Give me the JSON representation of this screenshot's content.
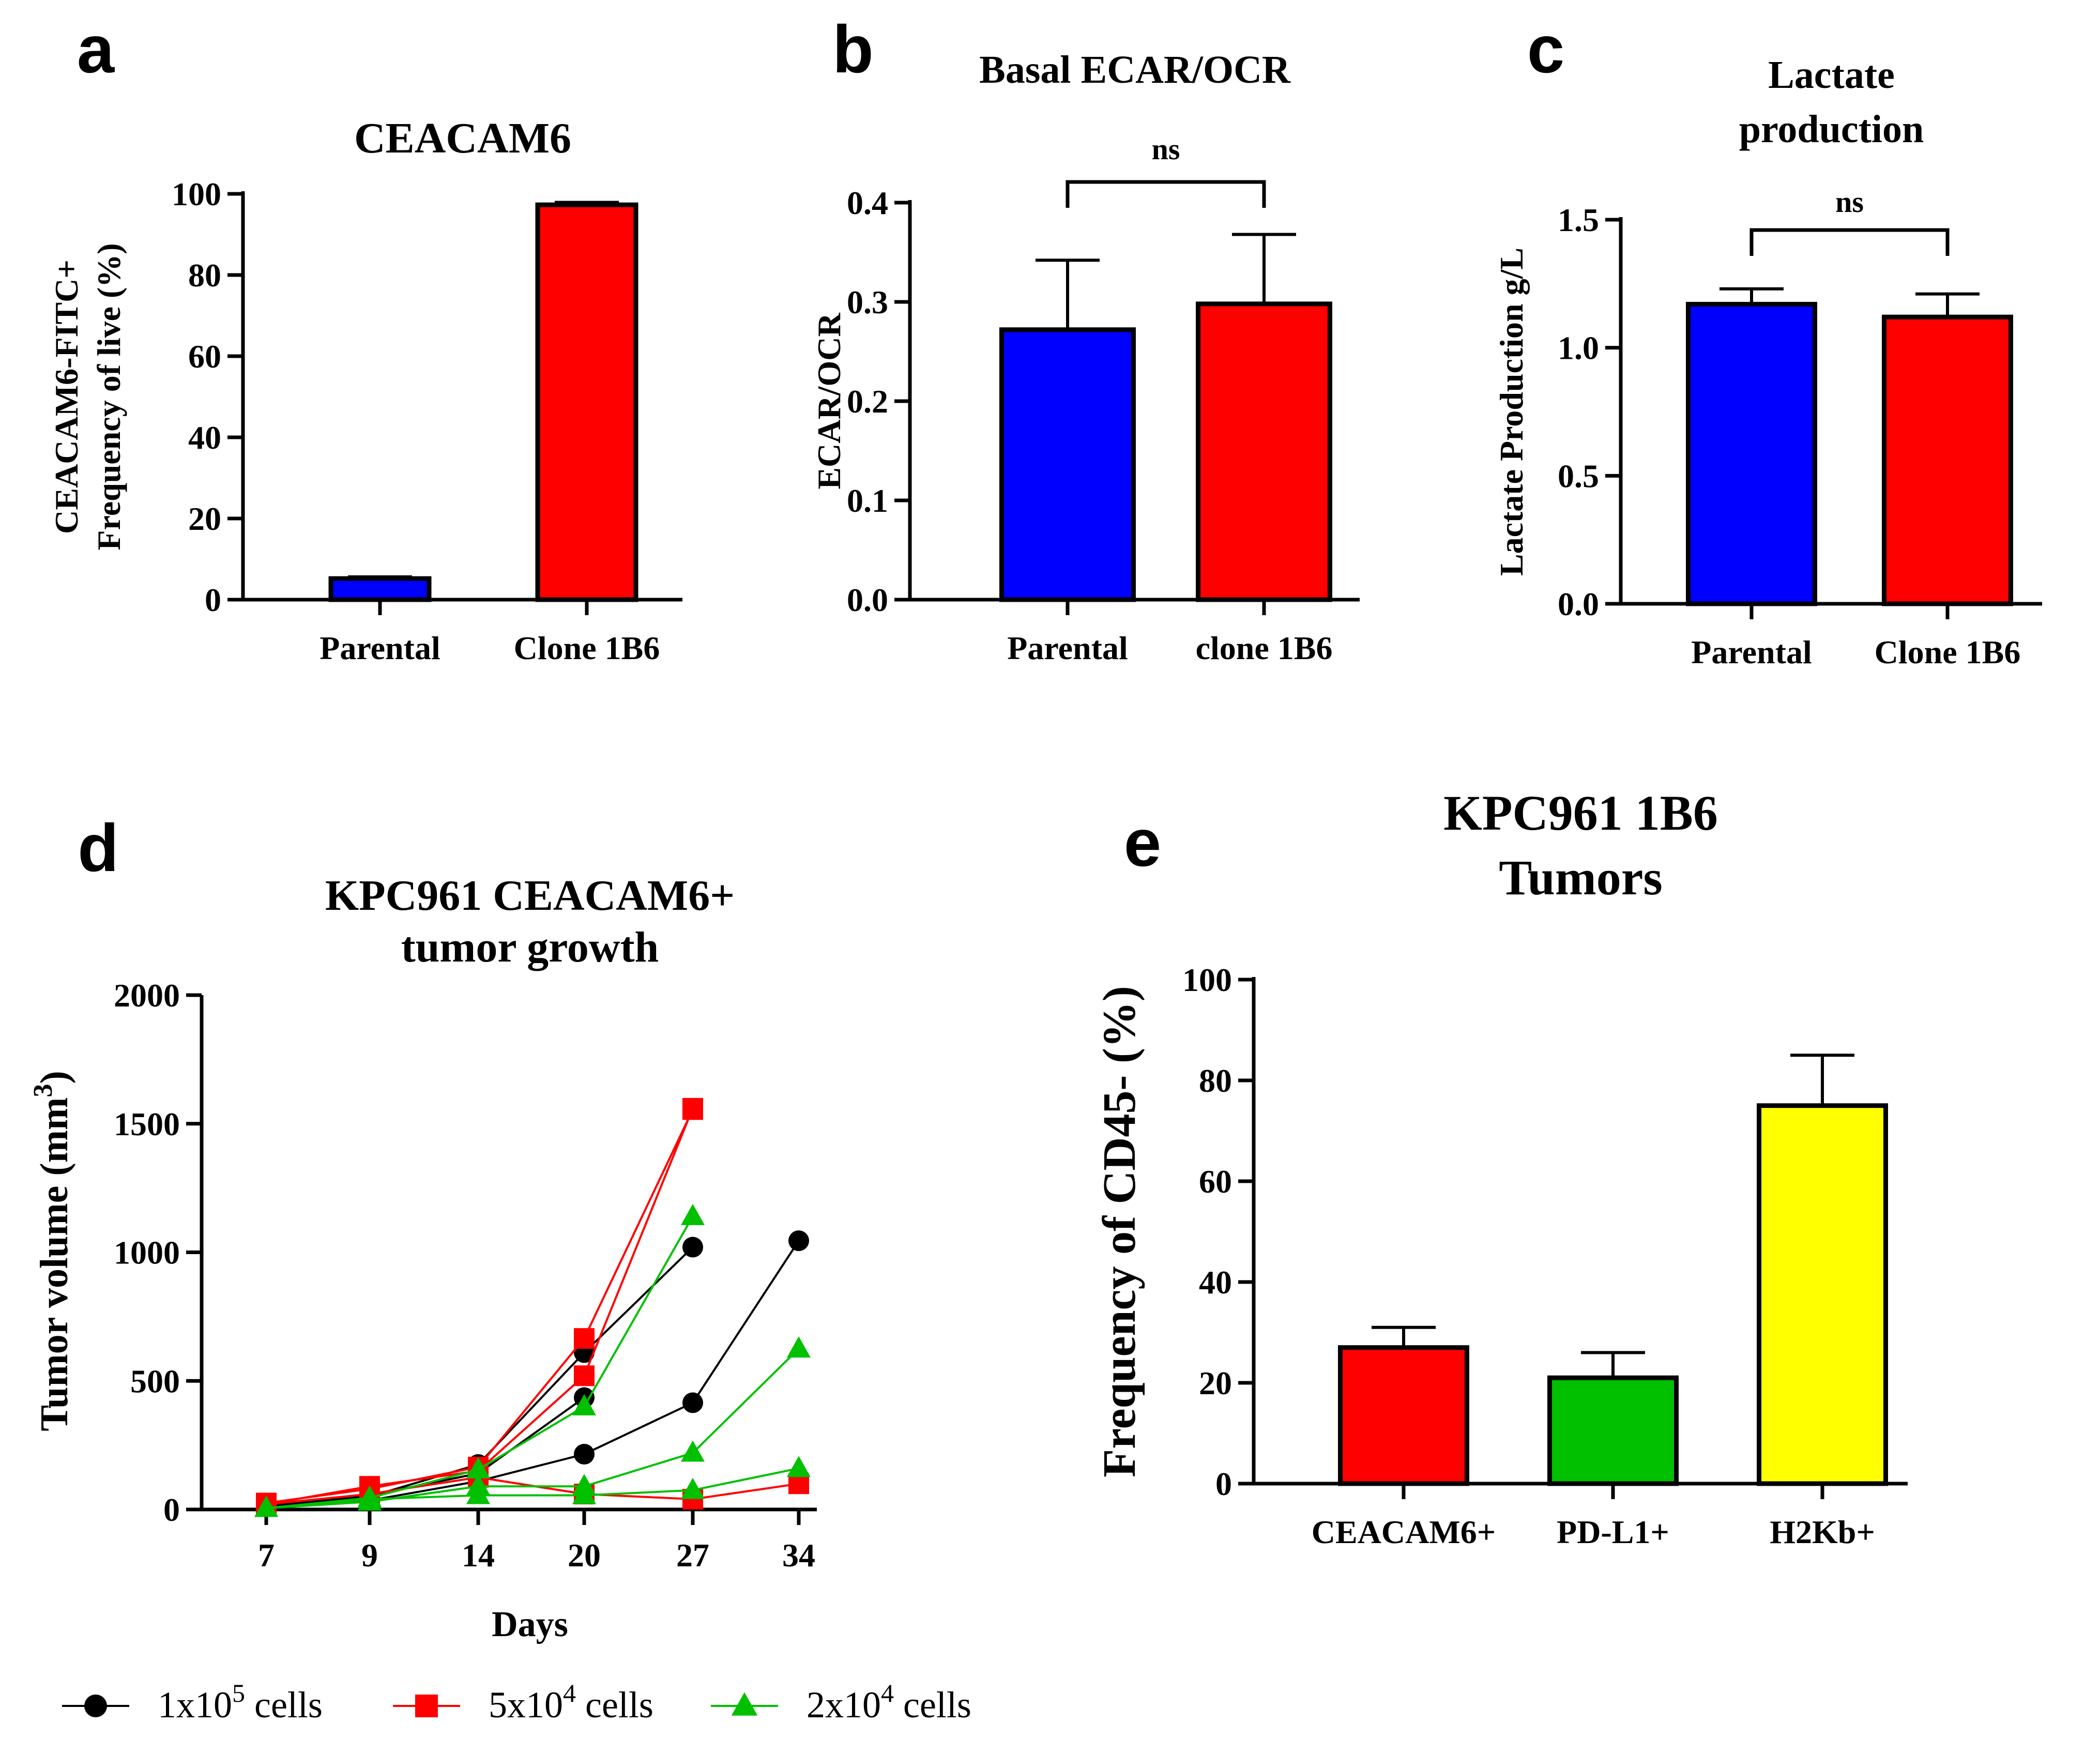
{
  "colors": {
    "blue": "#0000ff",
    "red": "#ff0000",
    "green": "#00c000",
    "yellow": "#ffff00",
    "black": "#000000"
  },
  "chart_data": [
    {
      "id": "a",
      "panel_label": "a",
      "type": "bar",
      "title": "CEACAM6",
      "ylabel": [
        "CEACAM6-FITC+",
        "Frequency of live (%)"
      ],
      "xlabel": "",
      "ylim": [
        0,
        100
      ],
      "yticks": [
        0,
        20,
        40,
        60,
        80,
        100
      ],
      "tick_labels": [
        "0",
        "20",
        "40",
        "60",
        "80",
        "100"
      ],
      "categories": [
        "Parental",
        "Clone 1B6"
      ],
      "values": [
        5.2,
        97.3
      ],
      "errors": [
        0.4,
        0.6
      ],
      "bar_colors": [
        "#0000ff",
        "#ff0000"
      ]
    },
    {
      "id": "b",
      "panel_label": "b",
      "type": "bar",
      "title": "Basal ECAR/OCR",
      "ylabel": [
        "ECAR/OCR"
      ],
      "xlabel": "",
      "ylim": [
        0,
        0.4
      ],
      "yticks": [
        0,
        0.1,
        0.2,
        0.3,
        0.4
      ],
      "tick_labels": [
        "0.0",
        "0.1",
        "0.2",
        "0.3",
        "0.4"
      ],
      "categories": [
        "Parental",
        "clone 1B6"
      ],
      "values": [
        0.272,
        0.298
      ],
      "errors": [
        0.07,
        0.07
      ],
      "bar_colors": [
        "#0000ff",
        "#ff0000"
      ],
      "significance": "ns"
    },
    {
      "id": "c",
      "panel_label": "c",
      "type": "bar",
      "title": "Lactate production",
      "title_lines": [
        "Lactate",
        "production"
      ],
      "ylabel": [
        "Lactate Production g/L"
      ],
      "xlabel": "",
      "ylim": [
        0,
        1.5
      ],
      "yticks": [
        0,
        0.5,
        1.0,
        1.5
      ],
      "tick_labels": [
        "0.0",
        "0.5",
        "1.0",
        "1.5"
      ],
      "categories": [
        "Parental",
        "Clone 1B6"
      ],
      "values": [
        1.17,
        1.12
      ],
      "errors": [
        0.06,
        0.09
      ],
      "bar_colors": [
        "#0000ff",
        "#ff0000"
      ],
      "significance": "ns"
    },
    {
      "id": "d",
      "panel_label": "d",
      "type": "line",
      "title": "KPC961 CEACAM6+ tumor growth",
      "title_lines": [
        "KPC961 CEACAM6+",
        "tumor growth"
      ],
      "ylabel": [
        "Tumor volume (mm",
        "3",
        ")"
      ],
      "xlabel": "Days",
      "x_categories": [
        "7",
        "9",
        "14",
        "20",
        "27",
        "34"
      ],
      "ylim": [
        0,
        2000
      ],
      "yticks": [
        0,
        500,
        1000,
        1500,
        2000
      ],
      "tick_labels": [
        "0",
        "500",
        "1000",
        "1500",
        "2000"
      ],
      "legend": [
        {
          "base": "1x10",
          "exp": "5",
          "suffix": " cells",
          "marker": "circle",
          "color": "#000000"
        },
        {
          "base": "5x10",
          "exp": "4",
          "suffix": " cells",
          "marker": "square",
          "color": "#ff0000"
        },
        {
          "base": "2x10",
          "exp": "4",
          "suffix": " cells",
          "marker": "triangle",
          "color": "#00c000"
        }
      ],
      "series": [
        {
          "group": 0,
          "values": [
            10,
            50,
            175,
            610,
            1020,
            null
          ]
        },
        {
          "group": 0,
          "values": [
            15,
            55,
            140,
            435,
            null,
            null
          ]
        },
        {
          "group": 0,
          "values": [
            10,
            35,
            110,
            215,
            415,
            1045
          ]
        },
        {
          "group": 1,
          "values": [
            25,
            80,
            165,
            665,
            1555,
            null
          ]
        },
        {
          "group": 1,
          "values": [
            20,
            90,
            150,
            520,
            1560,
            null
          ]
        },
        {
          "group": 1,
          "values": [
            20,
            60,
            125,
            60,
            40,
            100
          ]
        },
        {
          "group": 2,
          "values": [
            5,
            45,
            155,
            400,
            1140,
            null
          ]
        },
        {
          "group": 2,
          "values": [
            5,
            30,
            90,
            90,
            220,
            625
          ]
        },
        {
          "group": 2,
          "values": [
            5,
            40,
            55,
            55,
            75,
            160
          ]
        }
      ]
    },
    {
      "id": "e",
      "panel_label": "e",
      "type": "bar",
      "title": "KPC961 1B6 Tumors",
      "title_lines": [
        "KPC961 1B6",
        "Tumors"
      ],
      "ylabel": [
        "Frequency of CD45- (%)"
      ],
      "xlabel": "",
      "ylim": [
        0,
        100
      ],
      "yticks": [
        0,
        20,
        40,
        60,
        80,
        100
      ],
      "tick_labels": [
        "0",
        "20",
        "40",
        "60",
        "80",
        "100"
      ],
      "categories": [
        "CEACAM6+",
        "PD-L1+",
        "H2Kb+"
      ],
      "values": [
        27,
        21,
        75
      ],
      "errors": [
        4,
        5,
        10
      ],
      "bar_colors": [
        "#ff0000",
        "#00c000",
        "#ffff00"
      ]
    }
  ]
}
